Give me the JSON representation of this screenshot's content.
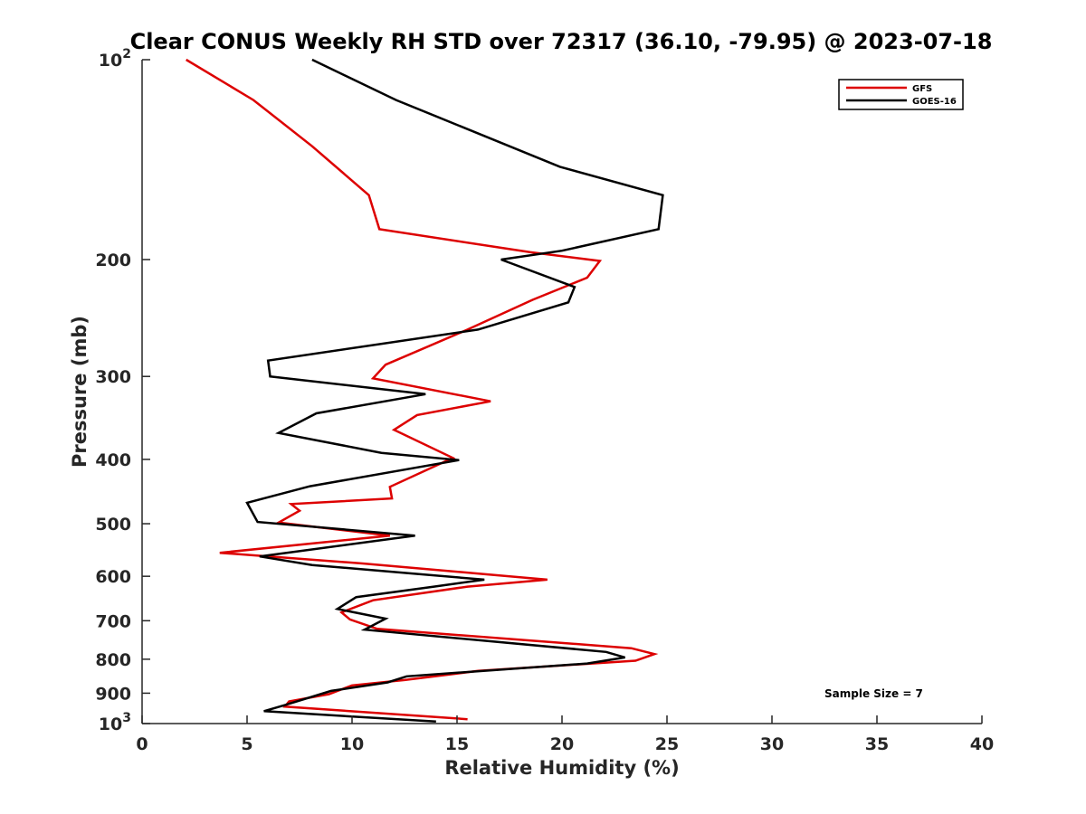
{
  "chart_data": {
    "type": "line",
    "title": "Clear CONUS Weekly RH STD over 72317 (36.10, -79.95) @ 2023-07-18",
    "xlabel": "Relative Humidity (%)",
    "ylabel": "Pressure (mb)",
    "xlim": [
      0,
      40
    ],
    "ylim": [
      100,
      1000
    ],
    "y_scale": "log",
    "y_reversed": true,
    "grid": false,
    "legend_position": "top-right",
    "annotation": "Sample Size = 7",
    "x_ticks": [
      "0",
      "5",
      "10",
      "15",
      "20",
      "25",
      "30",
      "35",
      "40"
    ],
    "x_tick_values": [
      0,
      5,
      10,
      15,
      20,
      25,
      30,
      35,
      40
    ],
    "y_ticks": [
      {
        "value": 100,
        "base": "10",
        "exp": "2"
      },
      {
        "value": 200,
        "label": "200"
      },
      {
        "value": 300,
        "label": "300"
      },
      {
        "value": 400,
        "label": "400"
      },
      {
        "value": 500,
        "label": "500"
      },
      {
        "value": 600,
        "label": "600"
      },
      {
        "value": 700,
        "label": "700"
      },
      {
        "value": 800,
        "label": "800"
      },
      {
        "value": 900,
        "label": "900"
      },
      {
        "value": 1000,
        "base": "10",
        "exp": "3"
      }
    ],
    "series": [
      {
        "name": "GFS",
        "color": "#dd0000",
        "points": [
          [
            2.1,
            100
          ],
          [
            5.3,
            115
          ],
          [
            8.1,
            135
          ],
          [
            10.8,
            160
          ],
          [
            11.3,
            180
          ],
          [
            18.5,
            195
          ],
          [
            21.8,
            201
          ],
          [
            21.2,
            213
          ],
          [
            18.6,
            230
          ],
          [
            15.5,
            255
          ],
          [
            11.6,
            288
          ],
          [
            11.0,
            302
          ],
          [
            16.6,
            327
          ],
          [
            13.1,
            343
          ],
          [
            12.0,
            361
          ],
          [
            14.8,
            398
          ],
          [
            11.8,
            440
          ],
          [
            11.9,
            458
          ],
          [
            7.1,
            467
          ],
          [
            7.5,
            478
          ],
          [
            6.5,
            498
          ],
          [
            11.8,
            521
          ],
          [
            3.7,
            553
          ],
          [
            10.5,
            574
          ],
          [
            19.3,
            607
          ],
          [
            15.5,
            622
          ],
          [
            11.0,
            652
          ],
          [
            9.5,
            680
          ],
          [
            9.9,
            697
          ],
          [
            11.2,
            720
          ],
          [
            23.3,
            770
          ],
          [
            24.4,
            786
          ],
          [
            23.5,
            804
          ],
          [
            16.0,
            833
          ],
          [
            12.5,
            860
          ],
          [
            10.0,
            876
          ],
          [
            8.9,
            903
          ],
          [
            7.0,
            926
          ],
          [
            6.8,
            943
          ],
          [
            15.5,
            985
          ]
        ]
      },
      {
        "name": "GOES-16",
        "color": "#000000",
        "points": [
          [
            8.1,
            100
          ],
          [
            12.1,
            115
          ],
          [
            19.9,
            145
          ],
          [
            24.8,
            160
          ],
          [
            24.6,
            180
          ],
          [
            20.0,
            194
          ],
          [
            17.1,
            200
          ],
          [
            20.6,
            220
          ],
          [
            20.3,
            232
          ],
          [
            16.0,
            255
          ],
          [
            6.0,
            284
          ],
          [
            6.1,
            300
          ],
          [
            13.5,
            319
          ],
          [
            8.3,
            341
          ],
          [
            6.5,
            365
          ],
          [
            11.4,
            391
          ],
          [
            15.1,
            401
          ],
          [
            8.0,
            439
          ],
          [
            5.0,
            465
          ],
          [
            5.5,
            497
          ],
          [
            13.0,
            521
          ],
          [
            5.6,
            560
          ],
          [
            8.1,
            577
          ],
          [
            16.3,
            607
          ],
          [
            13.9,
            622
          ],
          [
            10.2,
            645
          ],
          [
            9.3,
            672
          ],
          [
            11.6,
            695
          ],
          [
            10.6,
            722
          ],
          [
            22.1,
            780
          ],
          [
            23.0,
            795
          ],
          [
            21.2,
            812
          ],
          [
            12.6,
            849
          ],
          [
            11.7,
            867
          ],
          [
            9.0,
            893
          ],
          [
            6.8,
            938
          ],
          [
            5.8,
            958
          ],
          [
            14.0,
            993
          ]
        ]
      }
    ]
  }
}
